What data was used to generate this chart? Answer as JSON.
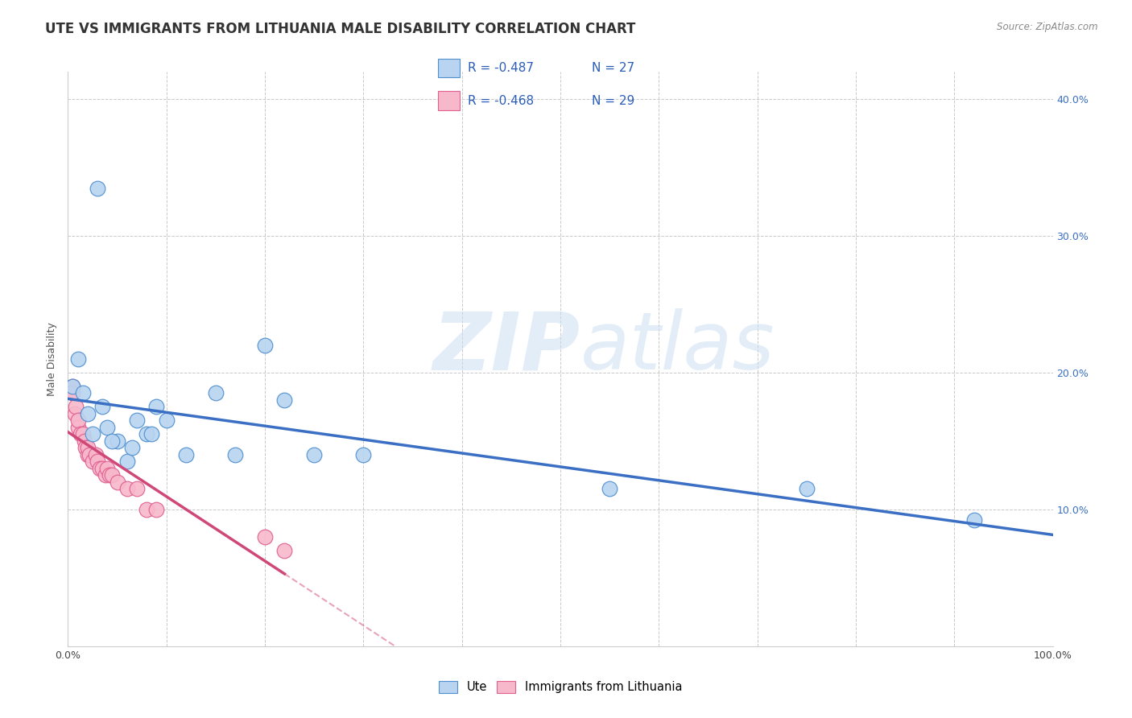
{
  "title": "UTE VS IMMIGRANTS FROM LITHUANIA MALE DISABILITY CORRELATION CHART",
  "source": "Source: ZipAtlas.com",
  "ylabel": "Male Disability",
  "watermark_zip": "ZIP",
  "watermark_atlas": "atlas",
  "legend_r1": "R = -0.487",
  "legend_n1": "N = 27",
  "legend_r2": "R = -0.468",
  "legend_n2": "N = 29",
  "ute_color": "#b8d4f0",
  "imm_color": "#f8b8cc",
  "ute_edge_color": "#5090d0",
  "imm_edge_color": "#e06090",
  "ute_line_color": "#3a6fc4",
  "imm_line_color": "#d04878",
  "xlim": [
    0.0,
    1.0
  ],
  "ylim": [
    0.0,
    0.42
  ],
  "ute_x": [
    0.005,
    0.01,
    0.015,
    0.02,
    0.025,
    0.03,
    0.04,
    0.05,
    0.06,
    0.07,
    0.08,
    0.09,
    0.1,
    0.12,
    0.15,
    0.17,
    0.2,
    0.22,
    0.55,
    0.75,
    0.92,
    0.035,
    0.045,
    0.065,
    0.085,
    0.25,
    0.3
  ],
  "ute_y": [
    0.19,
    0.21,
    0.185,
    0.17,
    0.155,
    0.335,
    0.16,
    0.15,
    0.135,
    0.165,
    0.155,
    0.175,
    0.165,
    0.14,
    0.185,
    0.14,
    0.22,
    0.18,
    0.115,
    0.115,
    0.092,
    0.175,
    0.15,
    0.145,
    0.155,
    0.14,
    0.14
  ],
  "imm_x": [
    0.005,
    0.005,
    0.007,
    0.008,
    0.01,
    0.01,
    0.013,
    0.015,
    0.017,
    0.018,
    0.02,
    0.02,
    0.022,
    0.025,
    0.028,
    0.03,
    0.032,
    0.035,
    0.038,
    0.04,
    0.042,
    0.045,
    0.05,
    0.06,
    0.07,
    0.08,
    0.09,
    0.2,
    0.22
  ],
  "imm_y": [
    0.19,
    0.185,
    0.17,
    0.175,
    0.16,
    0.165,
    0.155,
    0.155,
    0.15,
    0.145,
    0.14,
    0.145,
    0.14,
    0.135,
    0.14,
    0.135,
    0.13,
    0.13,
    0.125,
    0.13,
    0.125,
    0.125,
    0.12,
    0.115,
    0.115,
    0.1,
    0.1,
    0.08,
    0.07
  ],
  "background_color": "#ffffff",
  "grid_color": "#bbbbbb",
  "title_fontsize": 12,
  "axis_label_fontsize": 9,
  "tick_fontsize": 9,
  "legend_fontsize": 11
}
